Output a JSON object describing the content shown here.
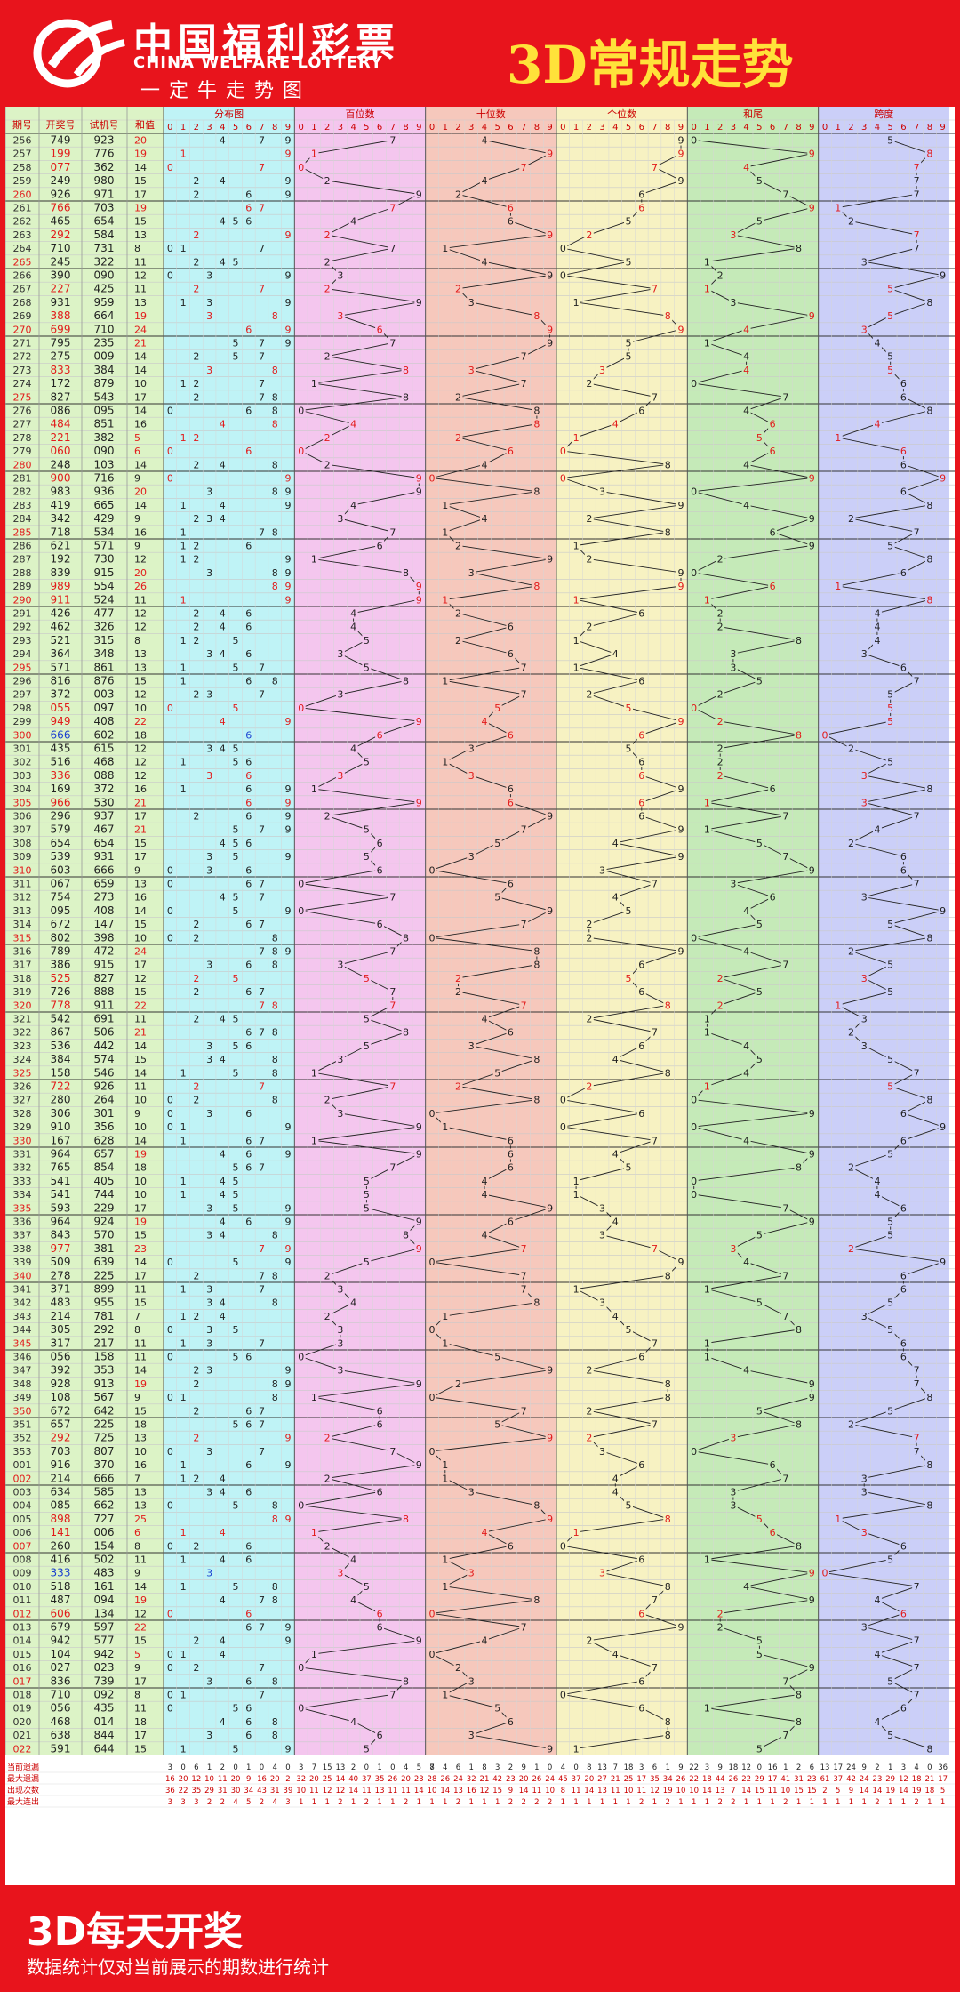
{
  "header": {
    "brand_cn": "中国福利彩票",
    "brand_en": "CHINA WELFARE LOTTERY",
    "slogan": "一定牛走势图",
    "title": "3D常规走势"
  },
  "columns": {
    "issue": "期号",
    "win": "开奖号",
    "trial": "试机号",
    "sum": "和值",
    "dist": "分布图",
    "hundreds": "百位数",
    "tens": "十位数",
    "units": "个位数",
    "sumtail": "和尾",
    "span": "跨度"
  },
  "digits": [
    "0",
    "1",
    "2",
    "3",
    "4",
    "5",
    "6",
    "7",
    "8",
    "9"
  ],
  "rows": [
    [
      "256",
      "749",
      "923",
      "20"
    ],
    [
      "257",
      "199",
      "776",
      "19"
    ],
    [
      "258",
      "077",
      "362",
      "14"
    ],
    [
      "259",
      "249",
      "980",
      "15"
    ],
    [
      "260",
      "926",
      "971",
      "17"
    ],
    [
      "261",
      "766",
      "703",
      "19"
    ],
    [
      "262",
      "465",
      "654",
      "15"
    ],
    [
      "263",
      "292",
      "584",
      "13"
    ],
    [
      "264",
      "710",
      "731",
      "8"
    ],
    [
      "265",
      "245",
      "322",
      "11"
    ],
    [
      "266",
      "390",
      "090",
      "12"
    ],
    [
      "267",
      "227",
      "425",
      "11"
    ],
    [
      "268",
      "931",
      "959",
      "13"
    ],
    [
      "269",
      "388",
      "664",
      "19"
    ],
    [
      "270",
      "699",
      "710",
      "24"
    ],
    [
      "271",
      "795",
      "235",
      "21"
    ],
    [
      "272",
      "275",
      "009",
      "14"
    ],
    [
      "273",
      "833",
      "384",
      "14"
    ],
    [
      "274",
      "172",
      "879",
      "10"
    ],
    [
      "275",
      "827",
      "543",
      "17"
    ],
    [
      "276",
      "086",
      "095",
      "14"
    ],
    [
      "277",
      "484",
      "851",
      "16"
    ],
    [
      "278",
      "221",
      "382",
      "5"
    ],
    [
      "279",
      "060",
      "090",
      "6"
    ],
    [
      "280",
      "248",
      "103",
      "14"
    ],
    [
      "281",
      "900",
      "716",
      "9"
    ],
    [
      "282",
      "983",
      "936",
      "20"
    ],
    [
      "283",
      "419",
      "665",
      "14"
    ],
    [
      "284",
      "342",
      "429",
      "9"
    ],
    [
      "285",
      "718",
      "534",
      "16"
    ],
    [
      "286",
      "621",
      "571",
      "9"
    ],
    [
      "287",
      "192",
      "730",
      "12"
    ],
    [
      "288",
      "839",
      "915",
      "20"
    ],
    [
      "289",
      "989",
      "554",
      "26"
    ],
    [
      "290",
      "911",
      "524",
      "11"
    ],
    [
      "291",
      "426",
      "477",
      "12"
    ],
    [
      "292",
      "462",
      "326",
      "12"
    ],
    [
      "293",
      "521",
      "315",
      "8"
    ],
    [
      "294",
      "364",
      "348",
      "13"
    ],
    [
      "295",
      "571",
      "861",
      "13"
    ],
    [
      "296",
      "816",
      "876",
      "15"
    ],
    [
      "297",
      "372",
      "003",
      "12"
    ],
    [
      "298",
      "055",
      "097",
      "10"
    ],
    [
      "299",
      "949",
      "408",
      "22"
    ],
    [
      "300",
      "666",
      "602",
      "18"
    ],
    [
      "301",
      "435",
      "615",
      "12"
    ],
    [
      "302",
      "516",
      "468",
      "12"
    ],
    [
      "303",
      "336",
      "088",
      "12"
    ],
    [
      "304",
      "169",
      "372",
      "16"
    ],
    [
      "305",
      "966",
      "530",
      "21"
    ],
    [
      "306",
      "296",
      "937",
      "17"
    ],
    [
      "307",
      "579",
      "467",
      "21"
    ],
    [
      "308",
      "654",
      "654",
      "15"
    ],
    [
      "309",
      "539",
      "931",
      "17"
    ],
    [
      "310",
      "603",
      "666",
      "9"
    ],
    [
      "311",
      "067",
      "659",
      "13"
    ],
    [
      "312",
      "754",
      "273",
      "16"
    ],
    [
      "313",
      "095",
      "408",
      "14"
    ],
    [
      "314",
      "672",
      "147",
      "15"
    ],
    [
      "315",
      "802",
      "398",
      "10"
    ],
    [
      "316",
      "789",
      "472",
      "24"
    ],
    [
      "317",
      "386",
      "915",
      "17"
    ],
    [
      "318",
      "525",
      "827",
      "12"
    ],
    [
      "319",
      "726",
      "888",
      "15"
    ],
    [
      "320",
      "778",
      "911",
      "22"
    ],
    [
      "321",
      "542",
      "691",
      "11"
    ],
    [
      "322",
      "867",
      "506",
      "21"
    ],
    [
      "323",
      "536",
      "442",
      "14"
    ],
    [
      "324",
      "384",
      "574",
      "15"
    ],
    [
      "325",
      "158",
      "546",
      "14"
    ],
    [
      "326",
      "722",
      "926",
      "11"
    ],
    [
      "327",
      "280",
      "264",
      "10"
    ],
    [
      "328",
      "306",
      "301",
      "9"
    ],
    [
      "329",
      "910",
      "356",
      "10"
    ],
    [
      "330",
      "167",
      "628",
      "14"
    ],
    [
      "331",
      "964",
      "657",
      "19"
    ],
    [
      "332",
      "765",
      "854",
      "18"
    ],
    [
      "333",
      "541",
      "405",
      "10"
    ],
    [
      "334",
      "541",
      "744",
      "10"
    ],
    [
      "335",
      "593",
      "229",
      "17"
    ],
    [
      "336",
      "964",
      "924",
      "19"
    ],
    [
      "337",
      "843",
      "570",
      "15"
    ],
    [
      "338",
      "977",
      "381",
      "23"
    ],
    [
      "339",
      "509",
      "639",
      "14"
    ],
    [
      "340",
      "278",
      "225",
      "17"
    ],
    [
      "341",
      "371",
      "899",
      "11"
    ],
    [
      "342",
      "483",
      "955",
      "15"
    ],
    [
      "343",
      "214",
      "781",
      "7"
    ],
    [
      "344",
      "305",
      "292",
      "8"
    ],
    [
      "345",
      "317",
      "217",
      "11"
    ],
    [
      "346",
      "056",
      "158",
      "11"
    ],
    [
      "347",
      "392",
      "353",
      "14"
    ],
    [
      "348",
      "928",
      "913",
      "19"
    ],
    [
      "349",
      "108",
      "567",
      "9"
    ],
    [
      "350",
      "672",
      "642",
      "15"
    ],
    [
      "351",
      "657",
      "225",
      "18"
    ],
    [
      "352",
      "292",
      "725",
      "13"
    ],
    [
      "353",
      "703",
      "807",
      "10"
    ],
    [
      "001",
      "916",
      "370",
      "16"
    ],
    [
      "002",
      "214",
      "666",
      "7"
    ],
    [
      "003",
      "634",
      "585",
      "13"
    ],
    [
      "004",
      "085",
      "662",
      "13"
    ],
    [
      "005",
      "898",
      "727",
      "25"
    ],
    [
      "006",
      "141",
      "006",
      "6"
    ],
    [
      "007",
      "260",
      "154",
      "8"
    ],
    [
      "008",
      "416",
      "502",
      "11"
    ],
    [
      "009",
      "333",
      "483",
      "9"
    ],
    [
      "010",
      "518",
      "161",
      "14"
    ],
    [
      "011",
      "487",
      "094",
      "19"
    ],
    [
      "012",
      "606",
      "134",
      "12"
    ],
    [
      "013",
      "679",
      "597",
      "22"
    ],
    [
      "014",
      "942",
      "577",
      "15"
    ],
    [
      "015",
      "104",
      "942",
      "5"
    ],
    [
      "016",
      "027",
      "023",
      "9"
    ],
    [
      "017",
      "836",
      "739",
      "17"
    ],
    [
      "018",
      "710",
      "092",
      "8"
    ],
    [
      "019",
      "056",
      "435",
      "11"
    ],
    [
      "020",
      "468",
      "014",
      "18"
    ],
    [
      "021",
      "638",
      "844",
      "17"
    ],
    [
      "022",
      "591",
      "644",
      "15"
    ]
  ],
  "stats": {
    "labels": [
      "当前遗漏",
      "最大遗漏",
      "出现次数",
      "最大连出"
    ],
    "lines": [
      "3 0 6 1 2 0 1 0 4 0 | 3 7 15 13 2 0 1 0 4 5 8 | 7 4 6 1 8 3 2 9 1 0 | 4 0 8 13 7 18 3 6 1 9 | 22 3 9 18 12 0 16 1 2 6 | 13 17 24 9 2 1 3 4 0 36",
      "16 20 12 10 11 20 9 16 20 2 | 32 20 25 14 40 37 35 26 20 23 | 28 26 24 32 21 42 23 20 26 24 | 45 37 20 27 21 25 17 35 34 26 | 22 18 44 26 22 29 17 41 31 23 | 61 37 42 24 23 29 12 18 21 17",
      "36 22 35 29 31 30 34 43 31 39 | 10 11 12 12 14 11 13 11 11 14 | 10 14 13 16 12 15 9 14 11 10 | 8 11 14 13 11 10 11 12 19 10 | 10 14 13 7 14 15 11 10 15 15 | 2 5 9 14 14 19 14 19 18 5",
      "3 3 3 2 2 4 5 2 4 3 | 1 1 1 2 1 2 1 1 2 1 | 1 1 2 1 1 1 2 2 2 2 | 1 1 1 1 1 1 2 1 2 1 | 1 1 2 2 1 1 1 2 1 1 | 1 1 1 1 2 1 1 2 1 1"
    ]
  },
  "footer": {
    "big": "3D每天开奖",
    "note": "数据统计仅对当前展示的期数进行统计"
  },
  "colors": {
    "red": "#e8141c",
    "yellow": "#ffe23a",
    "dist": "#bff3f6",
    "hundreds": "#f4c6ee",
    "tens": "#f6c8bc",
    "units": "#f7f2c2",
    "sumtail": "#c5eab8",
    "span": "#cbcff8",
    "idcol": "#dcf3c6"
  }
}
